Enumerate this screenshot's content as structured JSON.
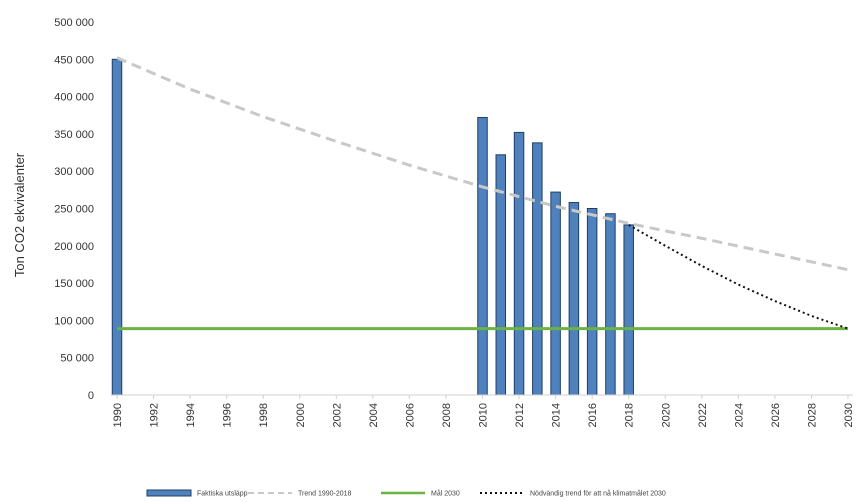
{
  "chart_data": {
    "type": "bar",
    "ylabel": "Ton CO2 ekvivalenter",
    "xlabel": "",
    "ylim": [
      0,
      500000
    ],
    "y_ticks": [
      "0",
      "50 000",
      "100 000",
      "150 000",
      "200 000",
      "250 000",
      "300 000",
      "350 000",
      "400 000",
      "450 000",
      "500 000"
    ],
    "x_ticks": [
      "1990",
      "1992",
      "1994",
      "1996",
      "1998",
      "2000",
      "2002",
      "2004",
      "2006",
      "2008",
      "2010",
      "2012",
      "2014",
      "2016",
      "2018",
      "2020",
      "2022",
      "2024",
      "2026",
      "2028",
      "2030"
    ],
    "grid": false,
    "legend_position": "bottom",
    "series": [
      {
        "name": "Faktiska utsläpp",
        "kind": "bar",
        "color": "#4f81bd",
        "x": [
          1990,
          2010,
          2011,
          2012,
          2013,
          2014,
          2015,
          2016,
          2017,
          2018
        ],
        "values": [
          450000,
          372000,
          322000,
          352000,
          338000,
          272000,
          258000,
          250000,
          243000,
          228000
        ]
      },
      {
        "name": "Trend 1990-2018",
        "kind": "line",
        "style": "dashed",
        "color": "#c8c8c8",
        "x": [
          1990,
          1994,
          1998,
          2002,
          2006,
          2010,
          2014,
          2018,
          2022,
          2026,
          2030
        ],
        "values": [
          452000,
          410000,
          373000,
          340000,
          308000,
          279000,
          253000,
          230000,
          210000,
          189000,
          168000
        ]
      },
      {
        "name": "Mål 2030",
        "kind": "line",
        "style": "solid",
        "color": "#6ab344",
        "x": [
          1990,
          2030
        ],
        "values": [
          89000,
          89000
        ]
      },
      {
        "name": "Nödvändig trend för att nå klimatmålet 2030",
        "kind": "line",
        "style": "dotted",
        "color": "#111111",
        "x": [
          2018,
          2020,
          2022,
          2024,
          2026,
          2028,
          2030
        ],
        "values": [
          228000,
          200000,
          173000,
          148000,
          126000,
          106000,
          89000
        ]
      }
    ]
  }
}
